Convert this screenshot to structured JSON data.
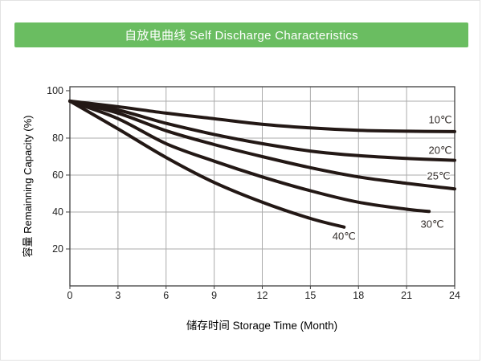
{
  "header": {
    "title": "自放电曲线 Self Discharge Characteristics",
    "bg_color": "#6abd61",
    "text_color": "#ffffff"
  },
  "chart_data": {
    "type": "line",
    "title": "自放电曲线 Self Discharge Characteristics",
    "xlabel": "储存时间 Storage Time (Month)",
    "ylabel": "容量 Remainning Capacity (%)",
    "xlim": [
      0,
      24
    ],
    "ylim": [
      0,
      107.8
    ],
    "xticks": [
      0,
      3,
      6,
      9,
      12,
      15,
      18,
      21,
      24
    ],
    "yticks": [
      20,
      40,
      60,
      80,
      100
    ],
    "grid": true,
    "legend_position": "inline-labels",
    "line_color": "#231815",
    "grid_color": "#ababab",
    "axis_color": "#404040",
    "text_color": "#222222",
    "series": [
      {
        "name": "10℃",
        "x": [
          0,
          3,
          6,
          9,
          12,
          15,
          18,
          21,
          24
        ],
        "y": [
          100,
          97,
          93.5,
          90.5,
          87.5,
          85.5,
          84.2,
          83.7,
          83.5
        ],
        "label_at": {
          "x": 23.1,
          "y": 90
        }
      },
      {
        "name": "20℃",
        "x": [
          0,
          3,
          6,
          9,
          12,
          15,
          18,
          21,
          24
        ],
        "y": [
          100,
          95.2,
          88,
          82,
          77,
          73,
          70.5,
          69,
          68
        ],
        "label_at": {
          "x": 23.1,
          "y": 73.5
        }
      },
      {
        "name": "25℃",
        "x": [
          0,
          3,
          6,
          9,
          12,
          15,
          18,
          21,
          24
        ],
        "y": [
          100,
          93.5,
          84,
          76.5,
          70,
          64,
          59,
          55.5,
          52.5
        ],
        "label_at": {
          "x": 23.0,
          "y": 59.5
        }
      },
      {
        "name": "30℃",
        "x": [
          0,
          3,
          6,
          9,
          12,
          15,
          18,
          21,
          22.4
        ],
        "y": [
          100,
          90.5,
          77,
          67.5,
          59,
          51.5,
          45.3,
          41.5,
          40.3
        ],
        "label_at": {
          "x": 22.6,
          "y": 33.5
        }
      },
      {
        "name": "40℃",
        "x": [
          0,
          3,
          6,
          9,
          12,
          15,
          17.1
        ],
        "y": [
          100,
          85,
          69.5,
          56,
          45.3,
          36.5,
          31.8
        ],
        "label_at": {
          "x": 17.1,
          "y": 27
        }
      }
    ]
  }
}
